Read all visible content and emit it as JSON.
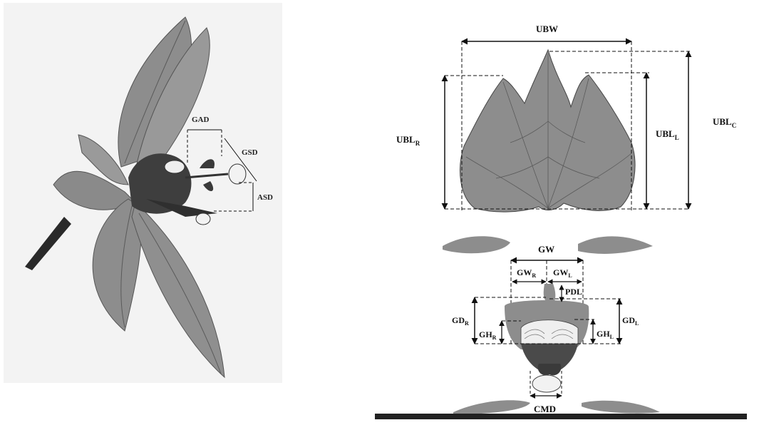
{
  "left_figure": {
    "labels": {
      "gad": "GAD",
      "gsd": "GSD",
      "asd": "ASD"
    }
  },
  "right_figure": {
    "labels": {
      "ubw": "UBW",
      "ubl_r": {
        "main": "UBL",
        "sub": "R"
      },
      "ubl_l": {
        "main": "UBL",
        "sub": "L"
      },
      "ubl_c": {
        "main": "UBL",
        "sub": "C"
      },
      "gw": "GW",
      "gw_r": {
        "main": "GW",
        "sub": "R"
      },
      "gw_l": {
        "main": "GW",
        "sub": "L"
      },
      "pdl": "PDL",
      "gd_r": {
        "main": "GD",
        "sub": "R"
      },
      "gd_l": {
        "main": "GD",
        "sub": "L"
      },
      "gh_r": {
        "main": "GH",
        "sub": "R"
      },
      "gh_l": {
        "main": "GH",
        "sub": "L"
      },
      "cmd": "CMD"
    }
  },
  "colors": {
    "leaf_fill": "#8d8d8d",
    "leaf_vein": "#5a5a5a",
    "flower_dark": "#3e3e3e",
    "background_left": "#f3f3f3",
    "line": "#111111"
  }
}
